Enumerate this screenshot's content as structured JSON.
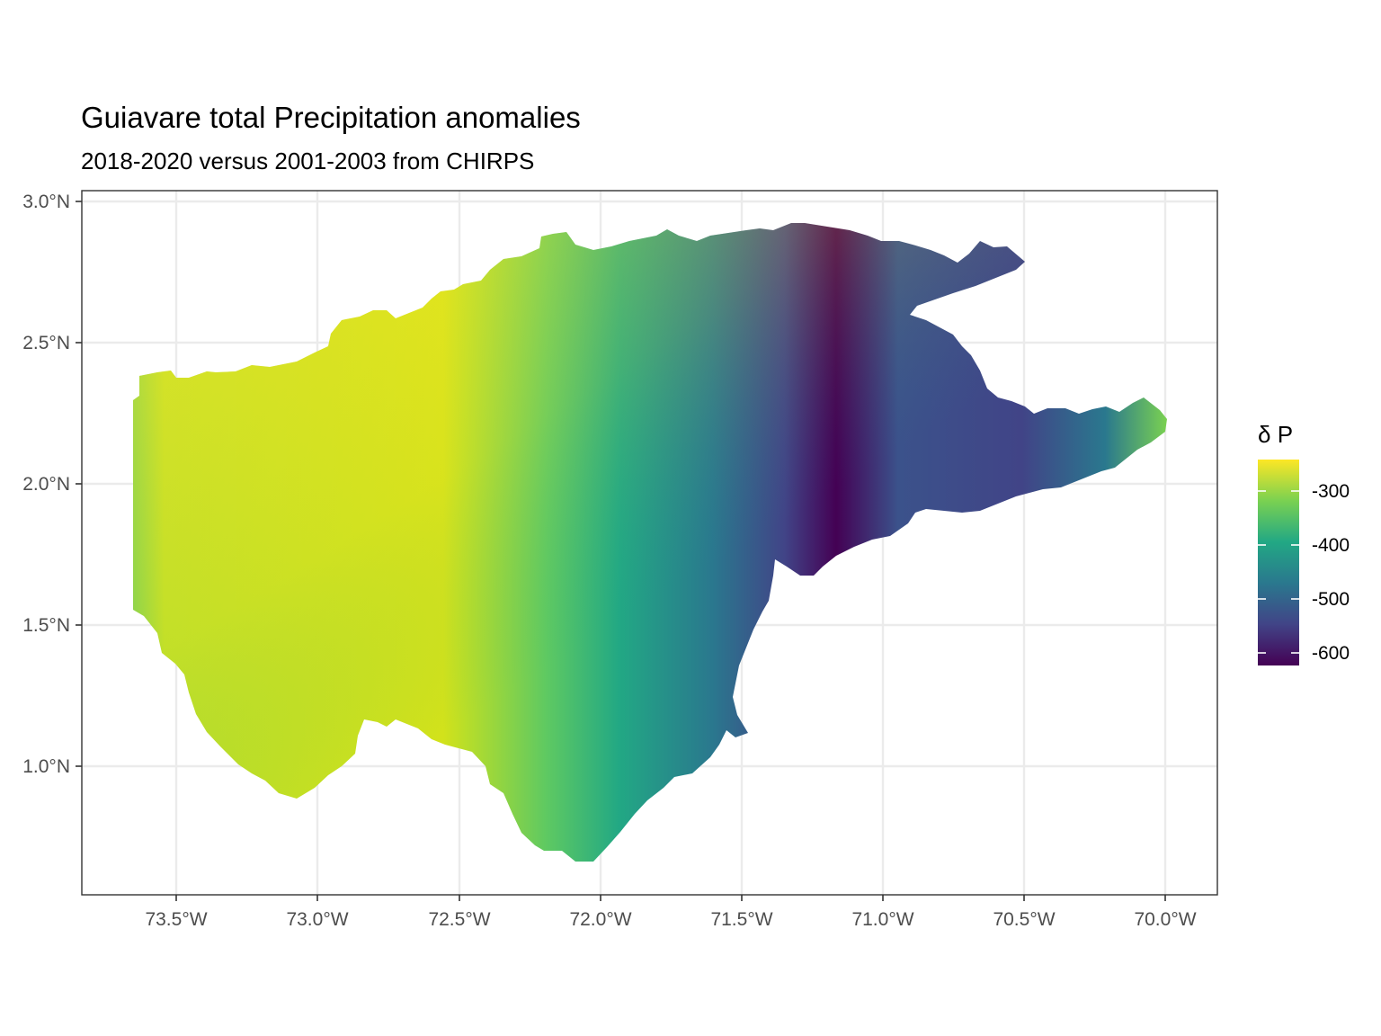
{
  "title": "Guiavare total Precipitation anomalies",
  "subtitle": "2018-2020 versus 2001-2003 from CHIRPS",
  "map": {
    "region": "Guiavare",
    "variable": "total precipitation anomaly",
    "x_ticks": [
      "73.5°W",
      "73.0°W",
      "72.5°W",
      "72.0°W",
      "71.5°W",
      "71.0°W",
      "70.5°W",
      "70.0°W"
    ],
    "y_ticks": [
      "3.0°N",
      "2.5°N",
      "2.0°N",
      "1.5°N",
      "1.0°N"
    ],
    "lon_range": [
      -73.84,
      -69.82
    ],
    "lat_range": [
      0.55,
      3.04
    ],
    "grid": true,
    "legend": {
      "title": "δ P",
      "placement": "right",
      "palette": "viridis",
      "labels": [
        "-300",
        "-400",
        "-500",
        "-600"
      ],
      "colors": [
        "#440154",
        "#414487",
        "#2a788e",
        "#22a884",
        "#7ad151",
        "#fde725"
      ]
    }
  }
}
